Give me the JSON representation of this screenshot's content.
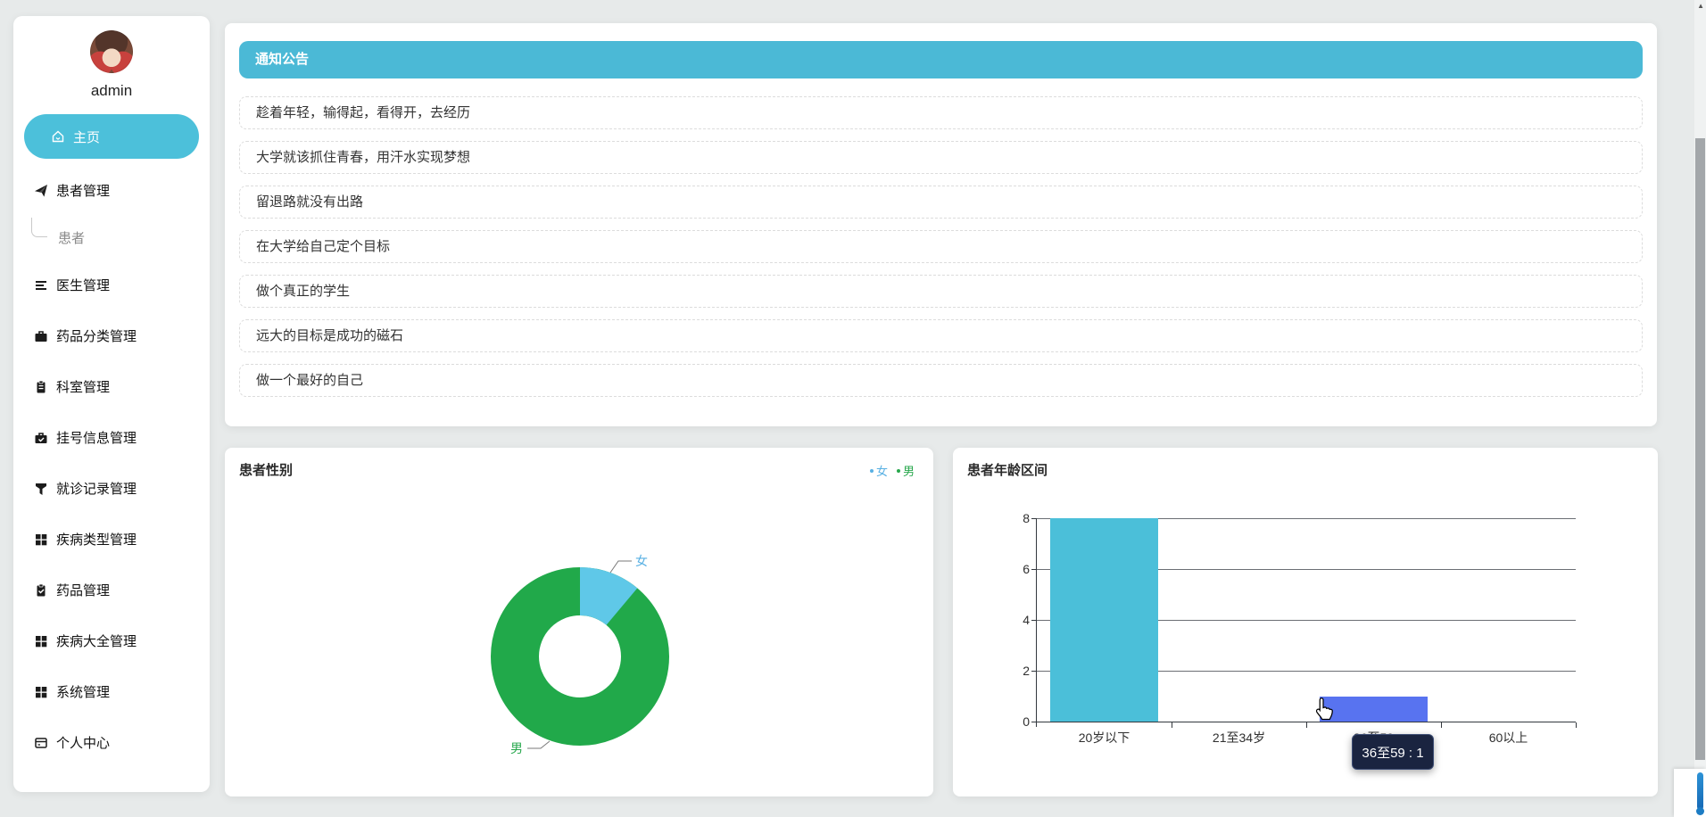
{
  "sidebar": {
    "username": "admin",
    "items": [
      {
        "label": "主页",
        "icon": "home-icon",
        "active": true
      },
      {
        "label": "患者管理",
        "icon": "send-icon"
      },
      {
        "label": "患者",
        "sub": true
      },
      {
        "label": "医生管理",
        "icon": "list-icon"
      },
      {
        "label": "药品分类管理",
        "icon": "briefcase-icon"
      },
      {
        "label": "科室管理",
        "icon": "clipboard-icon"
      },
      {
        "label": "挂号信息管理",
        "icon": "briefcase-check-icon"
      },
      {
        "label": "就诊记录管理",
        "icon": "funnel-icon"
      },
      {
        "label": "疾病类型管理",
        "icon": "grid-icon"
      },
      {
        "label": "药品管理",
        "icon": "clipboard-check-icon"
      },
      {
        "label": "疾病大全管理",
        "icon": "grid-icon"
      },
      {
        "label": "系统管理",
        "icon": "grid-icon"
      },
      {
        "label": "个人中心",
        "icon": "card-icon"
      }
    ]
  },
  "notice": {
    "title": "通知公告",
    "items": [
      "趁着年轻，输得起，看得开，去经历",
      "大学就该抓住青春，用汗水实现梦想",
      "留退路就没有出路",
      "在大学给自己定个目标",
      "做个真正的学生",
      "远大的目标是成功的磁石",
      "做一个最好的自己"
    ]
  },
  "colors": {
    "accent_teal": "#4bb9d6",
    "pill_teal": "#4cc0da",
    "pie_female_blue": "#5fc8e8",
    "pie_male_green": "#21a94a",
    "bar_teal": "#4bbfd9",
    "bar_hover_blue": "#5873f0",
    "tooltip_bg": "#1a2440"
  },
  "chart_data": [
    {
      "type": "pie",
      "donut": true,
      "title": "患者性别",
      "labels": [
        "女",
        "男"
      ],
      "values": [
        1,
        8
      ],
      "colors": [
        "#5fc8e8",
        "#21a94a"
      ],
      "legend": [
        "女",
        "男"
      ],
      "legend_position": "top-right",
      "label_colors": [
        "#58b0e3",
        "#27a74c"
      ]
    },
    {
      "type": "bar",
      "title": "患者年龄区间",
      "categories": [
        "20岁以下",
        "21至34岁",
        "36至59",
        "60以上"
      ],
      "values": [
        8,
        0,
        1,
        0
      ],
      "bar_colors": [
        "#4bbfd9",
        "#4bbfd9",
        "#5873f0",
        "#4bbfd9"
      ],
      "ylim": [
        0,
        8
      ],
      "yticks": [
        0,
        2,
        4,
        6,
        8
      ],
      "grid": true,
      "tooltip": {
        "text": "36至59 : 1",
        "category_index": 2
      }
    }
  ]
}
